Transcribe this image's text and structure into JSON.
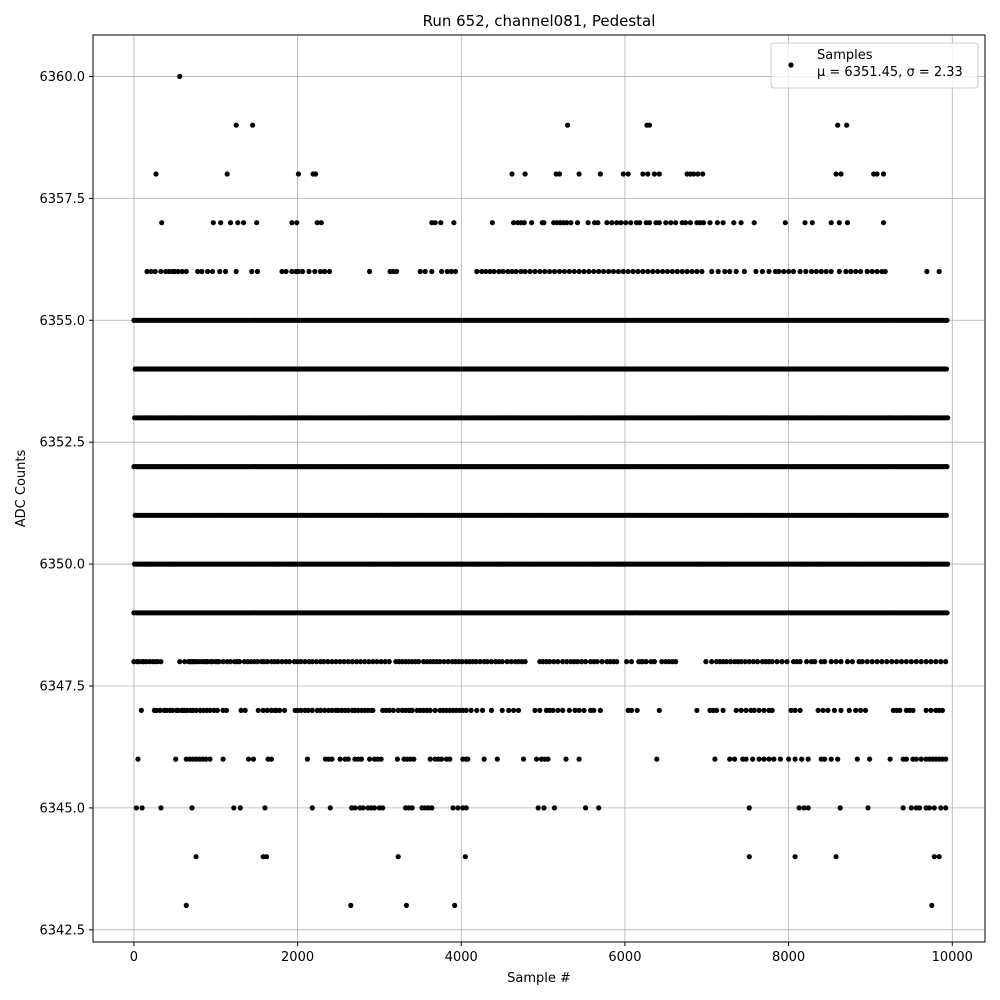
{
  "chart_data": {
    "type": "scatter",
    "title": "Run 652, channel081, Pedestal",
    "xlabel": "Sample #",
    "ylabel": "ADC Counts",
    "xlim": [
      -500,
      10400
    ],
    "ylim": [
      6342.25,
      6360.85
    ],
    "xticks": [
      0,
      2000,
      4000,
      6000,
      8000,
      10000
    ],
    "xtick_labels": [
      "0",
      "2000",
      "4000",
      "6000",
      "8000",
      "10000"
    ],
    "yticks": [
      6342.5,
      6345.0,
      6347.5,
      6350.0,
      6352.5,
      6355.0,
      6357.5,
      6360.0
    ],
    "ytick_labels": [
      "6342.5",
      "6345.0",
      "6347.5",
      "6350.0",
      "6352.5",
      "6355.0",
      "6357.5",
      "6360.0"
    ],
    "grid": true,
    "legend_position": "top-right",
    "marker_color": "#000000",
    "series": [
      {
        "name": "Samples",
        "stats_label": "μ = 6351.45, σ = 2.33",
        "n_samples": 10000,
        "levels": [
          {
            "y": 6348,
            "x": [
              0,
              40,
              60,
              100,
              120,
              150,
              190,
              230,
              260,
              290,
              330,
              560,
              620,
              670,
              690,
              700,
              720,
              740,
              760,
              790,
              830,
              860,
              880,
              900,
              940,
              960,
              1000,
              1020,
              1040,
              1090,
              1140,
              1180,
              1230,
              1260,
              1290,
              1350,
              1390,
              1430,
              1470,
              1510,
              1560,
              1590,
              1630,
              1680,
              1720,
              1760,
              1810,
              1860,
              1900,
              1960,
              2000,
              2040,
              2090,
              2140,
              2180,
              2230,
              2280,
              2320,
              2370,
              2420,
              2470,
              2520,
              2570,
              2620,
              2670,
              2720,
              2770,
              2820,
              2870,
              2920,
              2970,
              3020,
              3070,
              3120,
              3200,
              3240,
              3280,
              3320,
              3360,
              3400,
              3440,
              3480,
              3540,
              3580,
              3620,
              3660,
              3700,
              3740,
              3790,
              3840,
              3890,
              3930,
              3970,
              4010,
              4060,
              4100,
              4140,
              4180,
              4230,
              4280,
              4320,
              4370,
              4420,
              4460,
              4500,
              4560,
              4610,
              4660,
              4700,
              4740,
              4780,
              4960,
              5000,
              5040,
              5080,
              5130,
              5180,
              5240,
              5290,
              5340,
              5380,
              5420,
              5470,
              5520,
              5580,
              5620,
              5660,
              5720,
              5780,
              5820,
              5860,
              5900,
              6020,
              6080,
              6170,
              6200,
              6220,
              6260,
              6320,
              6360,
              6450,
              6500,
              6540,
              6580,
              6620,
              6990,
              7060,
              7120,
              7160,
              7200,
              7240,
              7290,
              7340,
              7380,
              7420,
              7470,
              7520,
              7570,
              7620,
              7680,
              7720,
              7760,
              7800,
              7860,
              7920,
              7980,
              8060,
              8100,
              8140,
              8220,
              8280,
              8320,
              8400,
              8440,
              8520,
              8580,
              8640,
              8720,
              8780,
              8860,
              8900,
              8960,
              9020,
              9080,
              9140,
              9200,
              9260,
              9320,
              9380,
              9440,
              9500,
              9560,
              9620,
              9680,
              9740,
              9800,
              9860,
              9920
            ]
          },
          {
            "y": 6347,
            "x": [
              90,
              250,
              280,
              320,
              370,
              400,
              440,
              470,
              520,
              540,
              580,
              600,
              620,
              650,
              690,
              720,
              760,
              810,
              850,
              890,
              930,
              980,
              1020,
              1090,
              1130,
              1310,
              1360,
              1520,
              1580,
              1630,
              1680,
              1720,
              1740,
              1780,
              1840,
              1970,
              2000,
              2040,
              2090,
              2130,
              2180,
              2240,
              2280,
              2330,
              2380,
              2420,
              2470,
              2500,
              2540,
              2580,
              2620,
              2670,
              2700,
              2740,
              2780,
              2820,
              2860,
              2900,
              2920,
              3040,
              3080,
              3120,
              3170,
              3230,
              3280,
              3320,
              3360,
              3380,
              3400,
              3460,
              3500,
              3540,
              3580,
              3620,
              3680,
              3740,
              3780,
              3820,
              3860,
              3900,
              3940,
              3980,
              4020,
              4060,
              4120,
              4190,
              4260,
              4370,
              4500,
              4580,
              4640,
              4700,
              4900,
              4960,
              5040,
              5080,
              5120,
              5180,
              5240,
              5320,
              5390,
              5440,
              5500,
              5580,
              5620,
              5700,
              6040,
              6080,
              6150,
              6420,
              6880,
              7040,
              7080,
              7120,
              7200,
              7360,
              7420,
              7480,
              7540,
              7580,
              7640,
              7700,
              7760,
              7800,
              8030,
              8080,
              8140,
              8360,
              8420,
              8480,
              8560,
              8640,
              8740,
              8820,
              8880,
              8940,
              9280,
              9320,
              9360,
              9440,
              9480,
              9520,
              9680,
              9740,
              9800,
              9840,
              9880
            ]
          },
          {
            "y": 6346,
            "x": [
              50,
              510,
              640,
              680,
              720,
              760,
              800,
              840,
              880,
              930,
              1090,
              1400,
              1460,
              1640,
              1680,
              2120,
              2340,
              2380,
              2420,
              2520,
              2580,
              2620,
              2700,
              2740,
              2780,
              2880,
              2940,
              2980,
              3020,
              3220,
              3300,
              3340,
              3380,
              3420,
              3620,
              3680,
              3720,
              3760,
              3820,
              3860,
              4020,
              4060,
              4080,
              4280,
              4440,
              4760,
              4920,
              4980,
              5020,
              5060,
              5280,
              5440,
              6390,
              7100,
              7280,
              7340,
              7440,
              7480,
              7560,
              7640,
              7700,
              7760,
              7820,
              7900,
              8000,
              8080,
              8160,
              8240,
              8400,
              8440,
              8520,
              8600,
              8840,
              8990,
              9240,
              9400,
              9440,
              9520,
              9560,
              9620,
              9680,
              9720,
              9760,
              9800,
              9840,
              9880,
              9920
            ]
          },
          {
            "y": 6345,
            "x": [
              30,
              100,
              330,
              710,
              1220,
              1300,
              1600,
              2180,
              2400,
              2660,
              2700,
              2760,
              2800,
              2860,
              2900,
              2940,
              3000,
              3040,
              3320,
              3360,
              3400,
              3520,
              3560,
              3600,
              3640,
              3900,
              3960,
              4020,
              4060,
              4940,
              5010,
              5140,
              5520,
              5680,
              7520,
              8130,
              8190,
              8240,
              8630,
              8970,
              9400,
              9500,
              9560,
              9600,
              9680,
              9720,
              9780,
              9860,
              9920
            ]
          },
          {
            "y": 6344,
            "x": [
              760,
              1580,
              1620,
              3230,
              4050,
              7520,
              8080,
              8580,
              9780,
              9840
            ]
          },
          {
            "y": 6343,
            "x": [
              640,
              2650,
              3330,
              3920,
              9750
            ]
          },
          {
            "y": 6356,
            "x": [
              160,
              210,
              260,
              330,
              390,
              430,
              470,
              500,
              540,
              590,
              640,
              780,
              830,
              900,
              960,
              1050,
              1120,
              1250,
              1440,
              1510,
              1810,
              1860,
              1930,
              1980,
              2010,
              2060,
              2140,
              2210,
              2280,
              2330,
              2390,
              2880,
              3130,
              3170,
              3210,
              3500,
              3560,
              3640,
              3760,
              3830,
              3880,
              3930,
              4190,
              4250,
              4300,
              4350,
              4400,
              4460,
              4510,
              4570,
              4620,
              4670,
              4730,
              4780,
              4840,
              4900,
              4960,
              5020,
              5080,
              5140,
              5200,
              5260,
              5320,
              5380,
              5440,
              5500,
              5560,
              5620,
              5680,
              5740,
              5800,
              5860,
              5920,
              5980,
              6040,
              6100,
              6160,
              6220,
              6280,
              6340,
              6400,
              6460,
              6520,
              6580,
              6640,
              6700,
              6760,
              6820,
              6880,
              6940,
              7060,
              7140,
              7220,
              7280,
              7360,
              7460,
              7600,
              7680,
              7760,
              7840,
              7880,
              7940,
              8000,
              8060,
              8140,
              8210,
              8280,
              8340,
              8400,
              8460,
              8520,
              8620,
              8700,
              8760,
              8820,
              8880,
              8960,
              9020,
              9080,
              9140,
              9180,
              9690,
              9840
            ]
          },
          {
            "y": 6357,
            "x": [
              340,
              970,
              1060,
              1180,
              1270,
              1340,
              1500,
              1930,
              1990,
              2240,
              2290,
              3640,
              3680,
              3750,
              3910,
              4380,
              4640,
              4690,
              4730,
              4770,
              4860,
              4990,
              5010,
              5130,
              5170,
              5210,
              5250,
              5290,
              5340,
              5420,
              5550,
              5630,
              5670,
              5780,
              5840,
              5900,
              5950,
              6010,
              6070,
              6140,
              6180,
              6260,
              6300,
              6380,
              6420,
              6500,
              6560,
              6620,
              6700,
              6740,
              6800,
              6880,
              6920,
              6960,
              7040,
              7130,
              7200,
              7330,
              7420,
              7580,
              7960,
              8200,
              8290,
              8520,
              8620,
              8720,
              9160
            ]
          },
          {
            "y": 6358,
            "x": [
              270,
              1140,
              2010,
              2190,
              2220,
              4620,
              4780,
              5160,
              5200,
              5440,
              5700,
              5980,
              6040,
              6220,
              6280,
              6360,
              6420,
              6760,
              6800,
              6840,
              6890,
              6950,
              8580,
              8640,
              9040,
              9080,
              9160
            ]
          },
          {
            "y": 6359,
            "x": [
              1250,
              1450,
              5300,
              6270,
              6300,
              8600,
              8710
            ]
          },
          {
            "y": 6360,
            "x": [
              560
            ]
          }
        ],
        "dense_levels": [
          6349,
          6350,
          6351,
          6352,
          6353,
          6354,
          6355
        ],
        "dense_x_range": [
          0,
          9950
        ]
      }
    ]
  }
}
